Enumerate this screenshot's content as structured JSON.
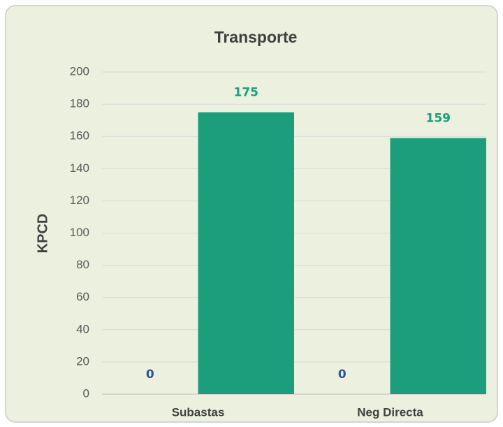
{
  "chart_data": {
    "type": "bar",
    "title": "Transporte",
    "y_label": "KPCD",
    "categories": [
      "Subastas",
      "Neg Directa"
    ],
    "series": [
      {
        "color": "#2f5597",
        "values": [
          0,
          0
        ]
      },
      {
        "color": "#1c9e7c",
        "values": [
          175,
          159
        ]
      }
    ],
    "ylim": [
      0,
      200
    ],
    "yticks": [
      0,
      20,
      40,
      60,
      80,
      100,
      120,
      140,
      160,
      180,
      200
    ],
    "grid": true
  }
}
